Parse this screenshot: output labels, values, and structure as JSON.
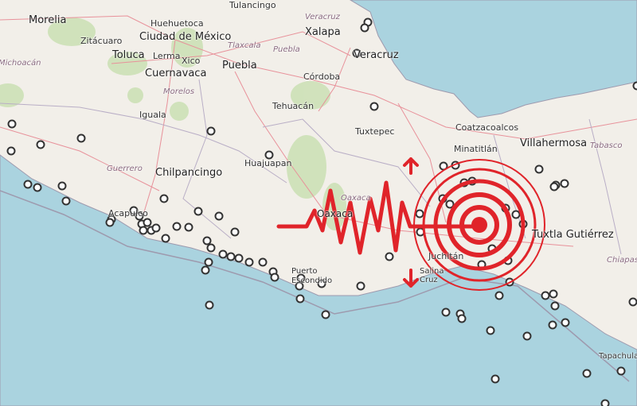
{
  "map": {
    "cities": [
      "Morelia",
      "Zitácuaro",
      "Huehuetoca",
      "Ciudad de México",
      "Toluca",
      "Lerma",
      "Xico",
      "Cuernavaca",
      "Puebla",
      "Tulancingo",
      "Xalapa",
      "Veracruz",
      "Córdoba",
      "Tehuacán",
      "Iguala",
      "Chilpancingo",
      "Huajuapan",
      "Acapulco",
      "Oaxaca",
      "Tuxtepec",
      "Coatzacoalcos",
      "Minatitlán",
      "Villahermosa",
      "Juchitán",
      "Salina Cruz",
      "Puerto Escondido",
      "Tuxtla Gutiérrez",
      "Tapachula"
    ],
    "states": [
      "Michoacán",
      "Tlaxcala",
      "Puebla",
      "Morelos",
      "Guerrero",
      "Oaxaca",
      "Tabasco",
      "Chiapas",
      "Veracruz"
    ],
    "colors": {
      "land": "#f2efe9",
      "water": "#aad3df",
      "forest": "#c8dfb0",
      "roads": "#e8919a",
      "borders": "#9e9aae",
      "quake": "#e0242a",
      "marker": "#333333"
    },
    "overlay_icons": [
      "seismograph-wave-icon",
      "epicenter-rings-icon",
      "arrow-up-icon",
      "arrow-down-icon"
    ]
  }
}
